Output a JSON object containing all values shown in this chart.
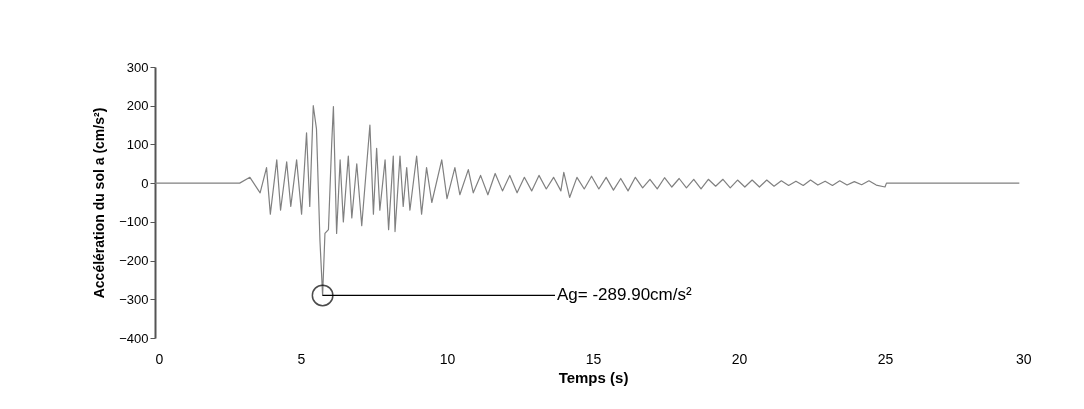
{
  "chart_data": {
    "type": "line",
    "xlabel": "Temps (s)",
    "ylabel": "Accélération du sol a (cm/s²)",
    "xlim": [
      0,
      30
    ],
    "xticks": [
      0,
      5,
      10,
      15,
      20,
      25,
      30
    ],
    "ylim": [
      -400,
      300
    ],
    "yticks": [
      -400,
      -300,
      -200,
      -100,
      0,
      100,
      200,
      300
    ],
    "grid": false,
    "marker": "none",
    "line_style": "solid",
    "annotations": [
      {
        "text": "Ag= -289.90cm/s²",
        "x": 5.74,
        "y": -289.9
      }
    ],
    "series": [
      {
        "color": "#808080",
        "x": [
          0,
          2.9,
          3.25,
          3.6,
          3.82,
          3.95,
          4.17,
          4.3,
          4.51,
          4.65,
          4.85,
          5.02,
          5.19,
          5.3,
          5.42,
          5.53,
          5.65,
          5.74,
          5.82,
          5.94,
          6.05,
          6.11,
          6.22,
          6.34,
          6.45,
          6.62,
          6.74,
          6.91,
          7.08,
          7.36,
          7.48,
          7.59,
          7.7,
          7.88,
          8.0,
          8.16,
          8.22,
          8.39,
          8.5,
          8.62,
          8.73,
          8.96,
          9.13,
          9.3,
          9.48,
          9.82,
          10.0,
          10.27,
          10.44,
          10.73,
          10.9,
          11.15,
          11.4,
          11.65,
          11.9,
          12.15,
          12.4,
          12.65,
          12.9,
          13.15,
          13.4,
          13.65,
          13.9,
          14.0,
          14.2,
          14.45,
          14.7,
          14.95,
          15.2,
          15.45,
          15.7,
          15.95,
          16.2,
          16.45,
          16.7,
          16.95,
          17.2,
          17.45,
          17.7,
          17.95,
          18.2,
          18.45,
          18.7,
          18.95,
          19.2,
          19.45,
          19.7,
          19.95,
          20.2,
          20.45,
          20.7,
          20.95,
          21.2,
          21.45,
          21.7,
          21.95,
          22.2,
          22.45,
          22.7,
          22.95,
          23.2,
          23.45,
          23.7,
          23.95,
          24.2,
          24.45,
          24.7,
          25.0,
          25.05,
          29.6
        ],
        "values": [
          0,
          0,
          15,
          -25,
          40,
          -80,
          60,
          -70,
          55,
          -60,
          60,
          -80,
          130,
          -60,
          200,
          140,
          -150,
          -289.9,
          -130,
          -120,
          100,
          198,
          -130,
          60,
          -100,
          70,
          -90,
          50,
          -110,
          150,
          -80,
          90,
          -70,
          60,
          -120,
          70,
          -125,
          70,
          -60,
          40,
          -70,
          70,
          -80,
          40,
          -50,
          60,
          -40,
          40,
          -30,
          35,
          -25,
          20,
          -30,
          25,
          -20,
          20,
          -25,
          15,
          -20,
          20,
          -15,
          15,
          -20,
          28,
          -37,
          15,
          -15,
          18,
          -15,
          15,
          -18,
          12,
          -20,
          15,
          -12,
          10,
          -15,
          14,
          -10,
          12,
          -12,
          10,
          -15,
          10,
          -8,
          10,
          -12,
          8,
          -10,
          8,
          -10,
          8,
          -8,
          6,
          -6,
          5,
          -6,
          8,
          -5,
          5,
          -6,
          6,
          -5,
          4,
          -4,
          6,
          -5,
          -10,
          0,
          0
        ]
      }
    ]
  }
}
